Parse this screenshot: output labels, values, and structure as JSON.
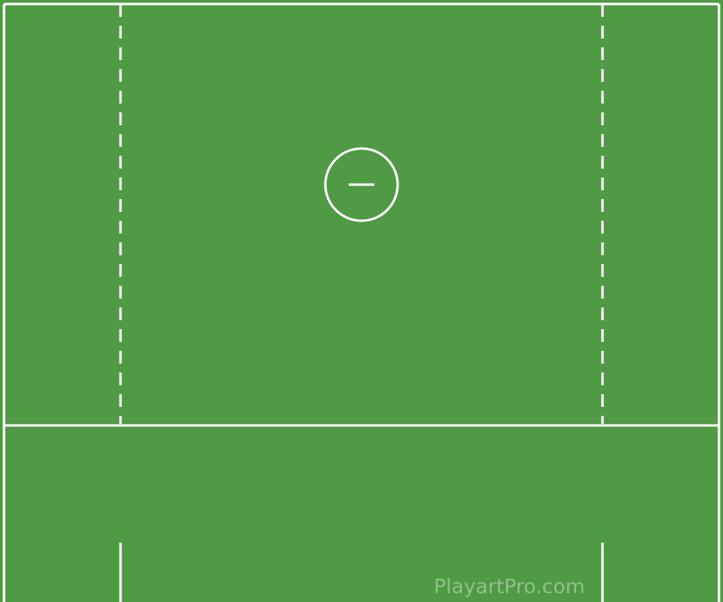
{
  "field": {
    "surface_color": "#509945",
    "line_color": "#ffffff",
    "watermark_color": "#8fc286"
  },
  "goal": {
    "icon": "goal-circle-icon",
    "crease_mark": "minus"
  },
  "watermark": {
    "text": "PlayartPro.com"
  }
}
